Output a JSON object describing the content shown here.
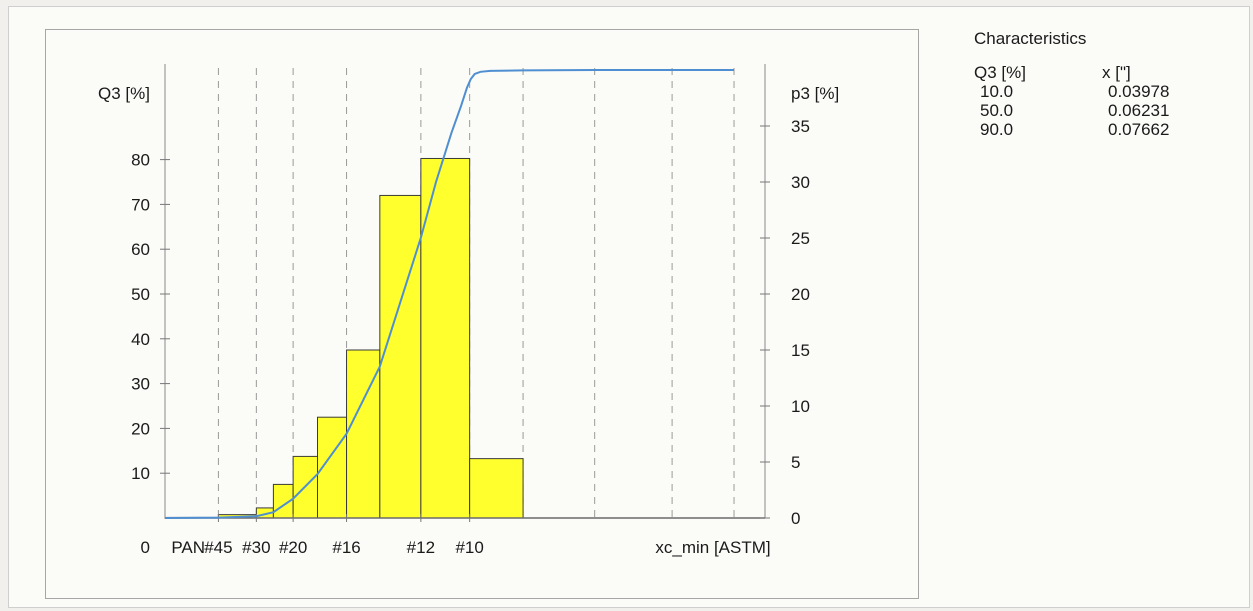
{
  "chart_data": {
    "type": "bar",
    "title": "",
    "xlabel": "xc_min [ASTM]",
    "left_axis": {
      "label": "Q3 [%]",
      "ticks": [
        10,
        20,
        30,
        40,
        50,
        60,
        70,
        80
      ],
      "range": [
        0,
        100
      ]
    },
    "right_axis": {
      "label": "p3 [%]",
      "ticks": [
        0,
        5,
        10,
        15,
        20,
        25,
        30,
        35
      ],
      "range": [
        0,
        40
      ]
    },
    "x_axis": {
      "range": [
        0,
        0.155
      ],
      "tick_labels": [
        {
          "text": "0",
          "x": 0
        },
        {
          "text": "PAN",
          "x": 0.006
        },
        {
          "text": "#45",
          "x": 0.0138
        },
        {
          "text": "#30",
          "x": 0.0236
        },
        {
          "text": "#20",
          "x": 0.0331
        },
        {
          "text": "#16",
          "x": 0.0469
        },
        {
          "text": "#12",
          "x": 0.0661
        },
        {
          "text": "#10",
          "x": 0.0787
        }
      ],
      "grid_x": [
        0.0138,
        0.0236,
        0.0331,
        0.0469,
        0.0661,
        0.0787,
        0.0925,
        0.111,
        0.131,
        0.147
      ]
    },
    "bars": [
      {
        "x0": 0.0,
        "x1": 0.0138,
        "p3": 0.05
      },
      {
        "x0": 0.0138,
        "x1": 0.0236,
        "p3": 0.3
      },
      {
        "x0": 0.0236,
        "x1": 0.028,
        "p3": 0.9
      },
      {
        "x0": 0.028,
        "x1": 0.0331,
        "p3": 3.0
      },
      {
        "x0": 0.0331,
        "x1": 0.0394,
        "p3": 5.5
      },
      {
        "x0": 0.0394,
        "x1": 0.0469,
        "p3": 9.0
      },
      {
        "x0": 0.0469,
        "x1": 0.0555,
        "p3": 15.0
      },
      {
        "x0": 0.0555,
        "x1": 0.0661,
        "p3": 28.8
      },
      {
        "x0": 0.0661,
        "x1": 0.0787,
        "p3": 32.1
      },
      {
        "x0": 0.0787,
        "x1": 0.0925,
        "p3": 5.3
      }
    ],
    "cumulative_q3": {
      "x": [
        0,
        0.0138,
        0.0236,
        0.028,
        0.0331,
        0.0394,
        0.0469,
        0.0555,
        0.0661,
        0.07,
        0.074,
        0.0765,
        0.078,
        0.079,
        0.08,
        0.0815,
        0.084,
        0.0925,
        0.111,
        0.131,
        0.147
      ],
      "y": [
        0,
        0.1,
        0.4,
        1.3,
        4.3,
        9.8,
        18.8,
        33.8,
        62.6,
        75.0,
        86.0,
        92.0,
        96.0,
        98.0,
        99.1,
        99.6,
        99.8,
        99.9,
        100,
        100,
        100
      ]
    },
    "grid": true,
    "colors": {
      "bar_fill": "#ffff2e",
      "bar_stroke": "#3a3a3a",
      "curve": "#4f8fd1",
      "grid": "#9a9a9a"
    }
  },
  "characteristics": {
    "title": "Characteristics",
    "col1_header": "Q3 [%]",
    "col2_header": "x [\"]",
    "rows": [
      {
        "q3": "10.0",
        "x": "0.03978"
      },
      {
        "q3": "50.0",
        "x": "0.06231"
      },
      {
        "q3": "90.0",
        "x": "0.07662"
      }
    ]
  }
}
